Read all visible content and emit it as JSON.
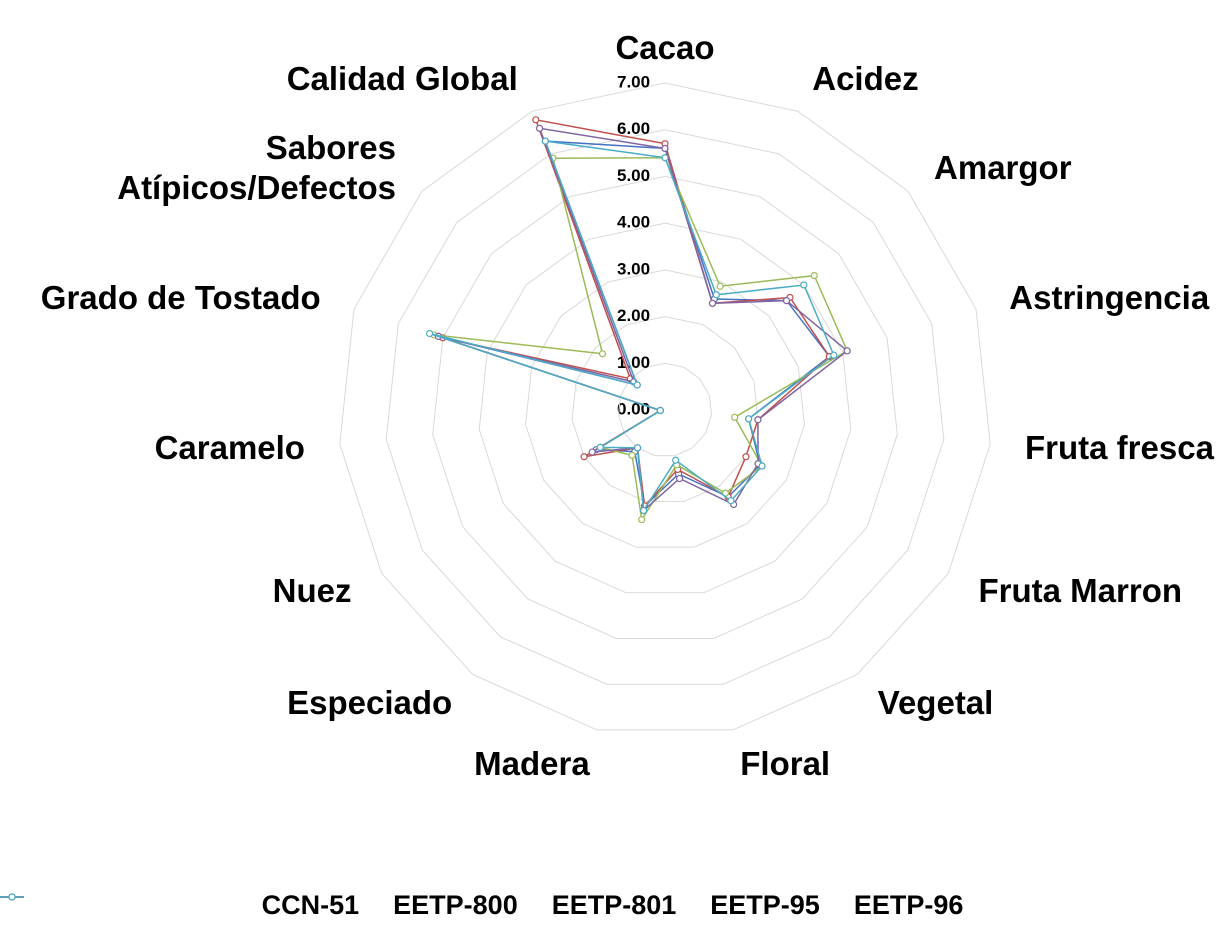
{
  "chart_data": {
    "type": "radar",
    "categories": [
      "Cacao",
      "Acidez",
      "Amargor",
      "Astringencia",
      "Fruta fresca",
      "Fruta Marron",
      "Vegetal",
      "Floral",
      "Madera",
      "Especiado",
      "Nuez",
      "Caramelo",
      "Grado de Tostado",
      "Sabores Atípicos/Defectos",
      "Calidad Global"
    ],
    "series": [
      {
        "name": "CCN-51",
        "color": "#4472c4",
        "values": [
          5.6,
          2.6,
          3.5,
          3.7,
          1.8,
          2.35,
          2.3,
          1.4,
          2.1,
          1.1,
          1.7,
          0.1,
          5.1,
          0.8,
          6.3
        ]
      },
      {
        "name": "EETP-800",
        "color": "#c0504d",
        "values": [
          5.7,
          2.5,
          3.6,
          3.7,
          2.0,
          2.0,
          2.3,
          1.3,
          2.1,
          1.0,
          2.0,
          0.1,
          5.0,
          1.0,
          6.8
        ]
      },
      {
        "name": "EETP-801",
        "color": "#9bbb59",
        "values": [
          5.4,
          2.9,
          4.3,
          4.1,
          1.5,
          2.4,
          2.2,
          1.2,
          2.4,
          1.2,
          1.6,
          0.1,
          5.2,
          1.8,
          5.9
        ]
      },
      {
        "name": "EETP-95",
        "color": "#8064a2",
        "values": [
          5.6,
          2.5,
          3.5,
          4.1,
          2.0,
          2.3,
          2.5,
          1.5,
          2.2,
          1.0,
          1.8,
          0.1,
          5.1,
          0.9,
          6.6
        ]
      },
      {
        "name": "EETP-96",
        "color": "#4bacc6",
        "values": [
          5.4,
          2.7,
          4.0,
          3.8,
          1.8,
          2.4,
          2.4,
          1.1,
          2.2,
          1.0,
          1.6,
          0.1,
          5.3,
          0.8,
          6.3
        ]
      }
    ],
    "ylim": [
      0,
      7
    ],
    "yticks": [
      {
        "value": 0,
        "label": "0.00"
      },
      {
        "value": 1,
        "label": "1.00"
      },
      {
        "value": 2,
        "label": "2.00"
      },
      {
        "value": 3,
        "label": "3.00"
      },
      {
        "value": 4,
        "label": "4.00"
      },
      {
        "value": 5,
        "label": "5.00"
      },
      {
        "value": 6,
        "label": "6.00"
      },
      {
        "value": 7,
        "label": "7.00"
      }
    ],
    "grid": true,
    "legend": "bottom"
  }
}
